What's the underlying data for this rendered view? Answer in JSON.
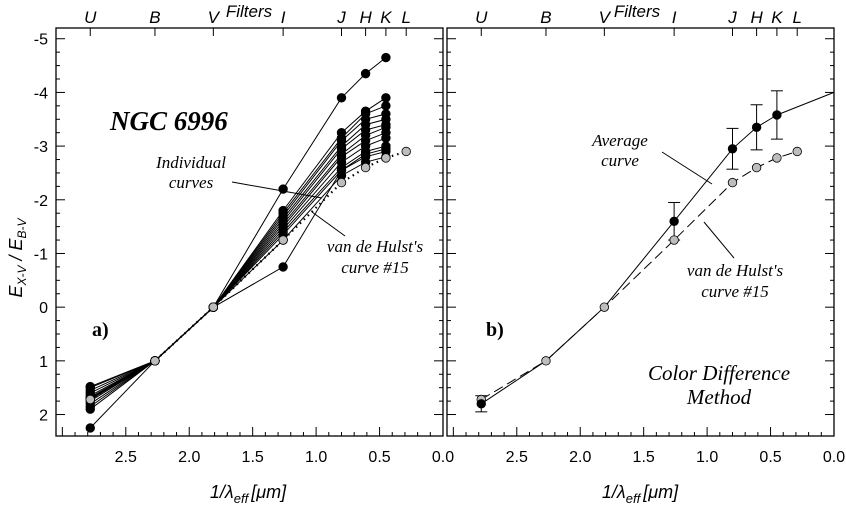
{
  "chart_data": [
    {
      "type": "line",
      "panel_label": "a)",
      "title": "NGC 6996",
      "xlabel_main": "1/λ",
      "xlabel_sub": "eff",
      "xlabel_unit": "[μm]",
      "ylabel_main": "E",
      "ylabel_sub1": "X-V",
      "ylabel_sep": " / E",
      "ylabel_sub2": "B-V",
      "top_axis_title": "Filters",
      "xlim": [
        3.05,
        0.0
      ],
      "ylim": [
        2.4,
        -5.2
      ],
      "x_ticks": [
        2.5,
        2.0,
        1.5,
        1.0,
        0.5,
        0.0
      ],
      "x_tick_labels": [
        "2.5",
        "2.0",
        "1.5",
        "1.0",
        "0.5",
        "0.0"
      ],
      "y_ticks": [
        -5,
        -4,
        -3,
        -2,
        -1,
        0,
        1,
        2
      ],
      "y_tick_labels": [
        "-5",
        "-4",
        "-3",
        "-2",
        "-1",
        "0",
        "1",
        "2"
      ],
      "filters": [
        {
          "name": "U",
          "x": 2.78
        },
        {
          "name": "B",
          "x": 2.27
        },
        {
          "name": "V",
          "x": 1.81
        },
        {
          "name": "I",
          "x": 1.26
        },
        {
          "name": "J",
          "x": 0.8
        },
        {
          "name": "H",
          "x": 0.61
        },
        {
          "name": "K",
          "x": 0.45
        },
        {
          "name": "L",
          "x": 0.29
        }
      ],
      "x": [
        2.78,
        2.27,
        1.81,
        1.26,
        0.8,
        0.61,
        0.45
      ],
      "series": [
        {
          "values": [
            2.25,
            1.0,
            0.0,
            -2.2,
            -3.9,
            -4.35,
            -4.65
          ]
        },
        {
          "values": [
            1.9,
            1.0,
            0.0,
            -1.8,
            -3.25,
            -3.65,
            -3.9
          ]
        },
        {
          "values": [
            1.85,
            1.0,
            0.0,
            -1.75,
            -3.15,
            -3.6,
            -3.75
          ]
        },
        {
          "values": [
            1.8,
            1.0,
            0.0,
            -1.7,
            -3.1,
            -3.5,
            -3.6
          ]
        },
        {
          "values": [
            1.75,
            1.0,
            0.0,
            -1.65,
            -3.0,
            -3.4,
            -3.5
          ]
        },
        {
          "values": [
            1.72,
            1.0,
            0.0,
            -1.6,
            -2.95,
            -3.3,
            -3.4
          ]
        },
        {
          "values": [
            1.7,
            1.0,
            0.0,
            -1.55,
            -2.85,
            -3.2,
            -3.35
          ]
        },
        {
          "values": [
            1.68,
            1.0,
            0.0,
            -1.5,
            -2.8,
            -3.1,
            -3.25
          ]
        },
        {
          "values": [
            1.65,
            1.0,
            0.0,
            -1.45,
            -2.7,
            -3.0,
            -3.15
          ]
        },
        {
          "values": [
            1.6,
            1.0,
            0.0,
            -1.4,
            -2.6,
            -2.9,
            -3.0
          ]
        },
        {
          "values": [
            1.55,
            1.0,
            0.0,
            -1.35,
            -2.55,
            -2.8,
            -2.9
          ]
        },
        {
          "values": [
            1.5,
            1.0,
            0.0,
            -1.25,
            -2.45,
            -2.7,
            -2.8
          ]
        },
        {
          "values": [
            1.48,
            1.0,
            0.0,
            -0.75,
            -2.55,
            -2.85,
            -2.95
          ]
        }
      ],
      "reference_curve": {
        "style": "dotted",
        "x": [
          2.78,
          2.27,
          1.81,
          1.26,
          0.8,
          0.61,
          0.45,
          0.29
        ],
        "values": [
          1.72,
          1.0,
          0.0,
          -1.25,
          -2.32,
          -2.6,
          -2.78,
          -2.9
        ]
      },
      "annotations": {
        "individual_line1": "Individual",
        "individual_line2": "curves",
        "vdh_line1": "van de Hulst's",
        "vdh_line2": "curve #15"
      },
      "grid": false
    },
    {
      "type": "line",
      "panel_label": "b)",
      "xlabel_main": "1/λ",
      "xlabel_sub": "eff",
      "xlabel_unit": "[μm]",
      "top_axis_title": "Filters",
      "xlim": [
        3.05,
        0.0
      ],
      "ylim": [
        2.4,
        -5.2
      ],
      "x_ticks": [
        2.5,
        2.0,
        1.5,
        1.0,
        0.5,
        0.0
      ],
      "x_tick_labels": [
        "2.5",
        "2.0",
        "1.5",
        "1.0",
        "0.5",
        "0.0"
      ],
      "filters": [
        {
          "name": "U",
          "x": 2.78
        },
        {
          "name": "B",
          "x": 2.27
        },
        {
          "name": "V",
          "x": 1.81
        },
        {
          "name": "I",
          "x": 1.26
        },
        {
          "name": "J",
          "x": 0.8
        },
        {
          "name": "H",
          "x": 0.61
        },
        {
          "name": "K",
          "x": 0.45
        },
        {
          "name": "L",
          "x": 0.29
        }
      ],
      "average_curve": {
        "x": [
          2.78,
          2.27,
          1.81,
          1.26,
          0.8,
          0.61,
          0.45
        ],
        "values": [
          1.8,
          1.0,
          0.0,
          -1.6,
          -2.95,
          -3.35,
          -3.58
        ],
        "errors": [
          0.15,
          0.0,
          0.0,
          0.35,
          0.38,
          0.42,
          0.45
        ],
        "extension_x": [
          0.45,
          0.0
        ],
        "extension_values": [
          -3.58,
          -4.0
        ]
      },
      "reference_curve": {
        "style": "dashed",
        "x": [
          2.78,
          2.27,
          1.81,
          1.26,
          0.8,
          0.61,
          0.45,
          0.29
        ],
        "values": [
          1.72,
          1.0,
          0.0,
          -1.25,
          -2.32,
          -2.6,
          -2.78,
          -2.9
        ]
      },
      "annotations": {
        "average_line1": "Average",
        "average_line2": "curve",
        "vdh_line1": "van de Hulst's",
        "vdh_line2": "curve #15",
        "method_line1": "Color Difference",
        "method_line2": "Method"
      },
      "grid": false
    }
  ],
  "colors": {
    "filled_marker": "#000000",
    "reference_marker": "#bdbdbd",
    "line": "#000000"
  }
}
